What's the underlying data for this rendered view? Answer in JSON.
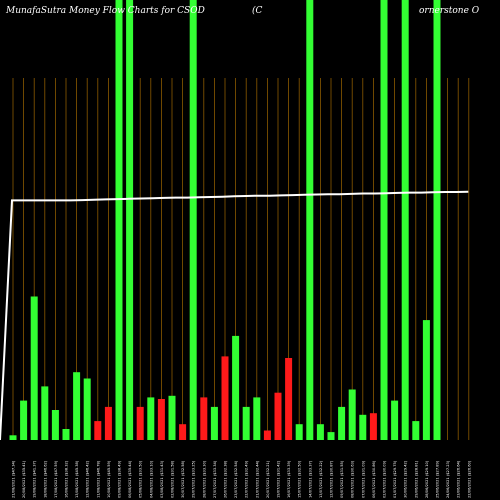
{
  "chart_data": {
    "type": "bar",
    "title_left": "MunafaSutra  Money Flow  Charts for CSOD",
    "title_mid": "(C",
    "title_right": "ornerstone    O",
    "colors": {
      "background": "#000000",
      "up": "#33ff33",
      "down": "#ff1a1a",
      "grid": "#8b5a00",
      "line": "#ffffff"
    },
    "categories": [
      "21/08/2021 ($47.34)",
      "20/08/2021 ($35.41)",
      "19/08/2021 ($41.37)",
      "18/08/2021 ($46.62)",
      "17/08/2021 ($47.59)",
      "16/08/2021 ($38.32)",
      "13/08/2021 ($45.38)",
      "12/08/2021 ($46.42)",
      "11/08/2021 ($46.78)",
      "10/08/2021 ($45.59)",
      "09/08/2021 ($38.49)",
      "06/08/2021 ($35.44)",
      "05/08/2021 ($33.50)",
      "04/08/2021 ($33.10)",
      "03/08/2021 ($31.43)",
      "02/08/2021 ($31.58)",
      "30/07/2021 ($32.58)",
      "29/07/2021 ($33.25)",
      "28/07/2021 ($33.30)",
      "27/07/2021 ($33.34)",
      "26/07/2021 ($32.38)",
      "23/07/2021 ($32.54)",
      "22/07/2021 ($32.49)",
      "21/07/2021 ($32.44)",
      "20/07/2021 ($32.21)",
      "19/07/2021 ($31.42)",
      "16/07/2021 ($33.39)",
      "15/07/2021 ($32.50)",
      "14/07/2021 ($33.37)",
      "13/07/2021 ($32.22)",
      "12/07/2021 ($30.87)",
      "09/07/2021 ($31.55)",
      "08/07/2021 ($30.63)",
      "07/07/2021 ($31.09)",
      "06/07/2021 ($30.86)",
      "02/07/2021 ($30.09)",
      "01/07/2021 ($29.75)",
      "30/06/2021 ($29.42)",
      "29/06/2021 ($28.81)",
      "28/06/2021 ($29.10)",
      "25/06/2021 ($27.89)",
      "24/06/2021 ($27.23)",
      "23/06/2021 ($26.64)",
      "22/06/2021 ($26.60)"
    ],
    "values": [
      3,
      25,
      91,
      34,
      19,
      7,
      43,
      39,
      12,
      21,
      279,
      279,
      21,
      27,
      26,
      28,
      10,
      279,
      27,
      21,
      53,
      66,
      21,
      27,
      6,
      30,
      52,
      10,
      279,
      10,
      5,
      21,
      32,
      16,
      17,
      279,
      25,
      279,
      12,
      76,
      279,
      0,
      0,
      0
    ],
    "direction": [
      "up",
      "up",
      "up",
      "up",
      "up",
      "up",
      "up",
      "up",
      "down",
      "down",
      "up",
      "up",
      "down",
      "up",
      "down",
      "up",
      "down",
      "up",
      "down",
      "up",
      "down",
      "up",
      "up",
      "up",
      "down",
      "down",
      "down",
      "up",
      "up",
      "up",
      "up",
      "up",
      "up",
      "up",
      "down",
      "up",
      "up",
      "up",
      "up",
      "up",
      "up",
      "up",
      "up",
      "up"
    ],
    "price_line": [
      0,
      77.3,
      77.3,
      77.3,
      77.3,
      77.3,
      77.3,
      77.4,
      77.5,
      77.6,
      77.7,
      77.8,
      77.9,
      78.0,
      78.1,
      78.2,
      78.2,
      78.3,
      78.4,
      78.5,
      78.6,
      78.7,
      78.8,
      78.8,
      78.9,
      79.0,
      79.1,
      79.2,
      79.3,
      79.3,
      79.4,
      79.5,
      79.5,
      79.6,
      79.7,
      79.8,
      79.8,
      79.9,
      80.0,
      80.0,
      80.1
    ],
    "ylim": [
      0,
      279
    ]
  }
}
